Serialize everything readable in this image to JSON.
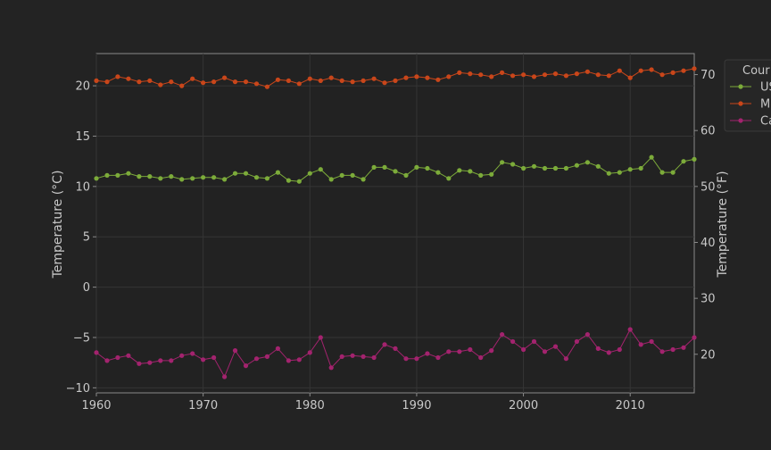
{
  "chart_data": {
    "type": "line",
    "xlabel": "",
    "ylabel_left": "Temperature (°C)",
    "ylabel_right": "Temperature (°F)",
    "xlim": [
      1960,
      2016
    ],
    "ylim_left": [
      -10.5,
      23.2
    ],
    "ylim_right_derived_f": true,
    "x_ticks": [
      1960,
      1970,
      1980,
      1990,
      2000,
      2010
    ],
    "y_ticks_left": [
      -10,
      -5,
      0,
      5,
      10,
      15,
      20
    ],
    "y_ticks_right": [
      20,
      30,
      40,
      50,
      60,
      70
    ],
    "grid": true,
    "legend_title": "Cour",
    "legend_placement": "right-outside",
    "x": [
      1960,
      1961,
      1962,
      1963,
      1964,
      1965,
      1966,
      1967,
      1968,
      1969,
      1970,
      1971,
      1972,
      1973,
      1974,
      1975,
      1976,
      1977,
      1978,
      1979,
      1980,
      1981,
      1982,
      1983,
      1984,
      1985,
      1986,
      1987,
      1988,
      1989,
      1990,
      1991,
      1992,
      1993,
      1994,
      1995,
      1996,
      1997,
      1998,
      1999,
      2000,
      2001,
      2002,
      2003,
      2004,
      2005,
      2006,
      2007,
      2008,
      2009,
      2010,
      2011,
      2012,
      2013,
      2014,
      2015,
      2016
    ],
    "series": [
      {
        "name": "US",
        "color": "#7cab3a",
        "values": [
          10.8,
          11.1,
          11.1,
          11.3,
          11.0,
          11.0,
          10.8,
          11.0,
          10.7,
          10.8,
          10.9,
          10.9,
          10.7,
          11.3,
          11.3,
          10.9,
          10.8,
          11.4,
          10.6,
          10.5,
          11.3,
          11.7,
          10.7,
          11.1,
          11.1,
          10.7,
          11.9,
          11.9,
          11.5,
          11.1,
          11.9,
          11.8,
          11.4,
          10.8,
          11.6,
          11.5,
          11.1,
          11.2,
          12.4,
          12.2,
          11.8,
          12.0,
          11.8,
          11.8,
          11.8,
          12.1,
          12.4,
          12.0,
          11.3,
          11.4,
          11.7,
          11.8,
          12.9,
          11.4,
          11.4,
          12.5,
          12.7
        ]
      },
      {
        "name": "Me",
        "color": "#c9461a",
        "values": [
          20.5,
          20.4,
          20.9,
          20.7,
          20.4,
          20.5,
          20.1,
          20.4,
          20.0,
          20.7,
          20.3,
          20.4,
          20.8,
          20.4,
          20.4,
          20.2,
          19.9,
          20.6,
          20.5,
          20.2,
          20.7,
          20.5,
          20.8,
          20.5,
          20.4,
          20.5,
          20.7,
          20.3,
          20.5,
          20.8,
          20.9,
          20.8,
          20.6,
          20.9,
          21.3,
          21.2,
          21.1,
          20.9,
          21.3,
          21.0,
          21.1,
          20.9,
          21.1,
          21.2,
          21.0,
          21.2,
          21.4,
          21.1,
          21.0,
          21.5,
          20.8,
          21.5,
          21.6,
          21.1,
          21.3,
          21.5,
          21.7
        ]
      },
      {
        "name": "Ca",
        "color": "#a3236e",
        "values": [
          -6.5,
          -7.3,
          -7.0,
          -6.8,
          -7.6,
          -7.5,
          -7.3,
          -7.3,
          -6.8,
          -6.6,
          -7.2,
          -7.0,
          -8.9,
          -6.3,
          -7.8,
          -7.1,
          -6.9,
          -6.1,
          -7.3,
          -7.2,
          -6.5,
          -5.0,
          -8.0,
          -6.9,
          -6.8,
          -6.9,
          -7.0,
          -5.7,
          -6.1,
          -7.1,
          -7.1,
          -6.6,
          -7.0,
          -6.4,
          -6.4,
          -6.2,
          -7.0,
          -6.3,
          -4.7,
          -5.4,
          -6.2,
          -5.4,
          -6.4,
          -5.9,
          -7.1,
          -5.4,
          -4.7,
          -6.1,
          -6.5,
          -6.2,
          -4.2,
          -5.7,
          -5.4,
          -6.4,
          -6.2,
          -6.0,
          -5.0
        ]
      }
    ]
  }
}
